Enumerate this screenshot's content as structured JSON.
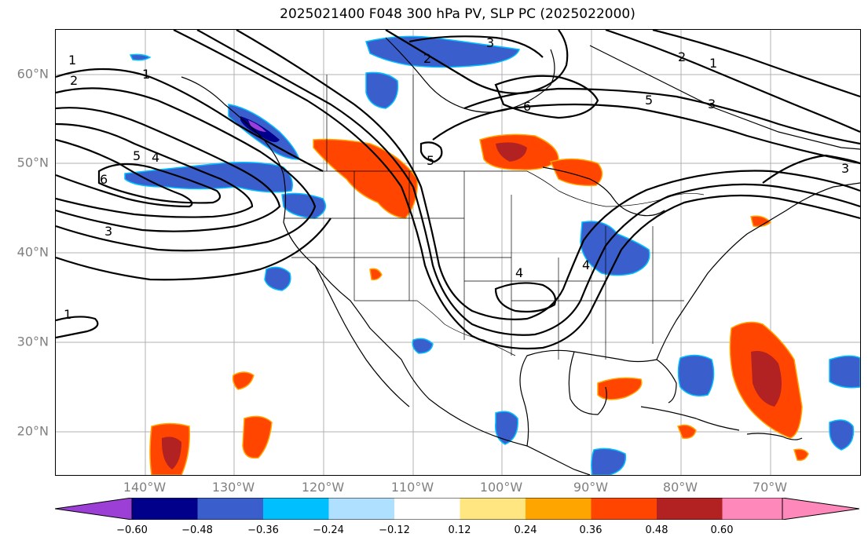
{
  "title": "2025021400 F048 300 hPa PV, SLP PC (2025022000)",
  "lat_labels": [
    "60°N",
    "50°N",
    "40°N",
    "30°N",
    "20°N"
  ],
  "lon_labels": [
    "140°W",
    "130°W",
    "120°W",
    "110°W",
    "100°W",
    "90°W",
    "80°W",
    "70°W"
  ],
  "colorbar": {
    "ticks": [
      "−0.60",
      "−0.48",
      "−0.36",
      "−0.24",
      "−0.12",
      "0.12",
      "0.24",
      "0.36",
      "0.48",
      "0.60"
    ],
    "colors": [
      "#9b3fd6",
      "#00008b",
      "#3a5fcd",
      "#00bfff",
      "#b0e0ff",
      "#ffffff",
      "#ffe680",
      "#ffa500",
      "#ff4500",
      "#b22222",
      "#ff88bb"
    ]
  },
  "contour_labels": [
    "1",
    "2",
    "4",
    "5",
    "6",
    "3",
    "1",
    "2",
    "3",
    "6",
    "5",
    "4",
    "5",
    "1",
    "2",
    "3",
    "4",
    "3",
    "1"
  ]
}
